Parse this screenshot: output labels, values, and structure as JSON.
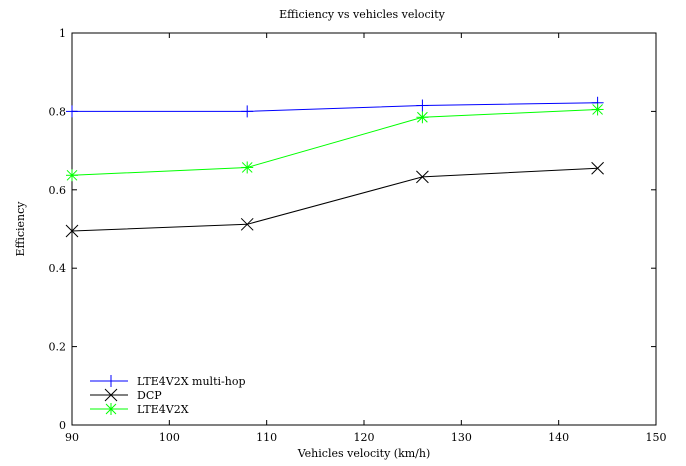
{
  "chart_data": {
    "type": "line",
    "title": "Efficiency vs vehicles velocity",
    "xlabel": "Vehicles velocity (km/h)",
    "ylabel": "Efficiency",
    "xlim": [
      90,
      150
    ],
    "ylim": [
      0,
      1
    ],
    "xticks": [
      90,
      100,
      110,
      120,
      130,
      140,
      150
    ],
    "yticks": [
      0,
      0.2,
      0.4,
      0.6,
      0.8,
      1
    ],
    "grid": false,
    "legend_position": "bottom-left",
    "x": [
      90,
      108,
      126,
      144
    ],
    "series": [
      {
        "name": "LTE4V2X multi-hop",
        "values": [
          0.8,
          0.8,
          0.815,
          0.822
        ],
        "color": "#0000ff",
        "marker": "plus"
      },
      {
        "name": "DCP",
        "values": [
          0.495,
          0.512,
          0.633,
          0.655
        ],
        "color": "#000000",
        "marker": "cross"
      },
      {
        "name": "LTE4V2X",
        "values": [
          0.637,
          0.657,
          0.785,
          0.805
        ],
        "color": "#00ff00",
        "marker": "star"
      }
    ]
  }
}
